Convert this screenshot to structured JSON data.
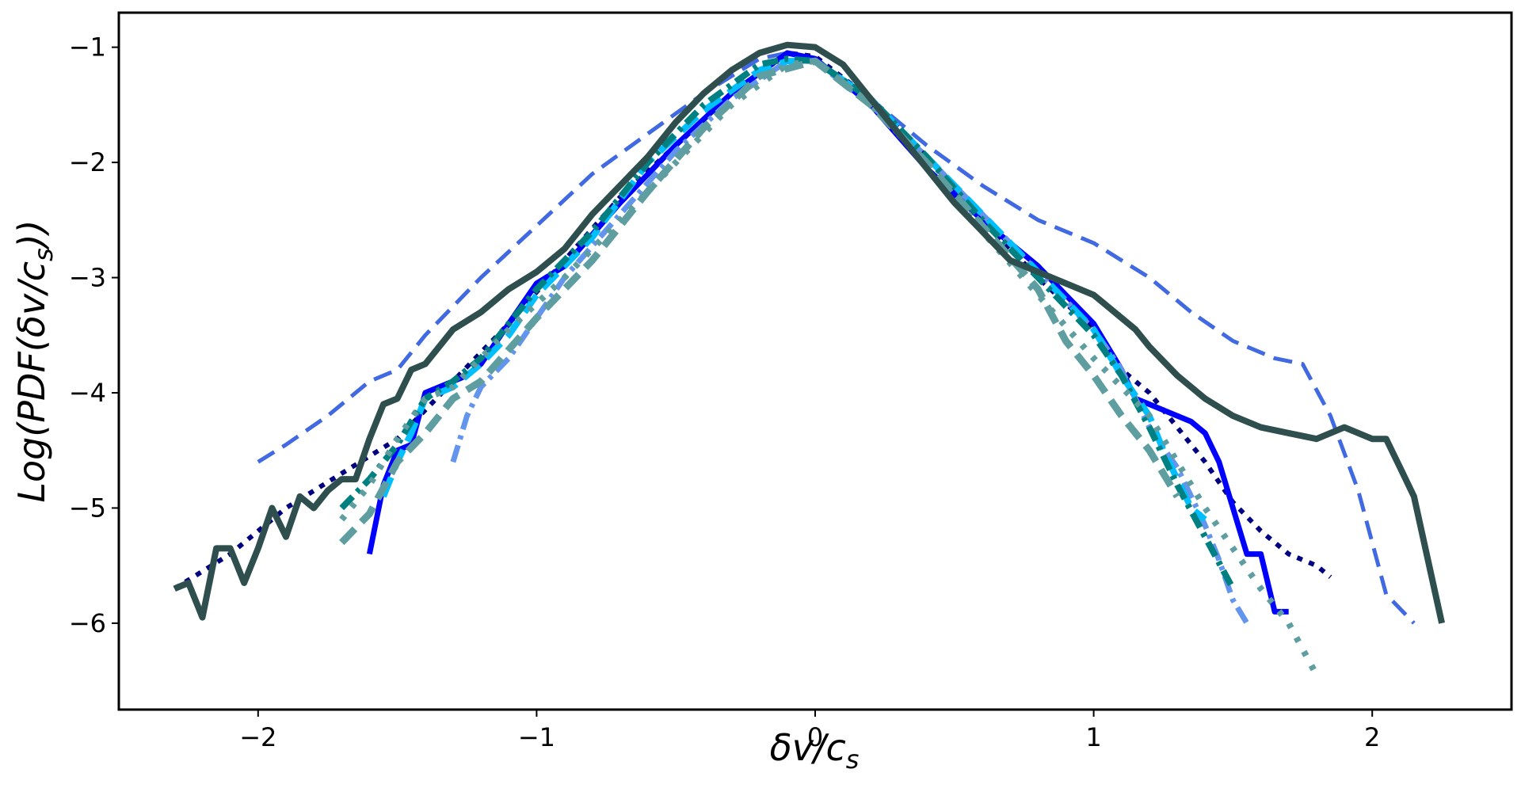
{
  "chart_data": {
    "type": "line",
    "title": "",
    "xlabel_parts": [
      "δv/c",
      "s"
    ],
    "ylabel_parts": [
      "Log(PDF(δv/c",
      "s",
      "))"
    ],
    "xlim": [
      -2.5,
      2.5
    ],
    "ylim": [
      -6.75,
      -0.7
    ],
    "xticks": [
      -2,
      -1,
      0,
      1,
      2
    ],
    "yticks": [
      -1,
      -2,
      -3,
      -4,
      -5,
      -6
    ],
    "grid": false,
    "legend": "none",
    "series": [
      {
        "name": "dashed royal blue",
        "color": "#4169e1",
        "dash": "24,12",
        "width": 5,
        "x": [
          -2.0,
          -1.9,
          -1.75,
          -1.6,
          -1.5,
          -1.4,
          -1.3,
          -1.2,
          -1.0,
          -0.8,
          -0.6,
          -0.4,
          -0.2,
          -0.1,
          0.0,
          0.2,
          0.4,
          0.6,
          0.8,
          1.0,
          1.2,
          1.35,
          1.5,
          1.65,
          1.75,
          1.85,
          1.95,
          2.05,
          2.15
        ],
        "y": [
          -4.6,
          -4.45,
          -4.2,
          -3.9,
          -3.8,
          -3.5,
          -3.25,
          -3.0,
          -2.55,
          -2.1,
          -1.75,
          -1.4,
          -1.1,
          -1.05,
          -1.1,
          -1.45,
          -1.85,
          -2.2,
          -2.5,
          -2.7,
          -3.0,
          -3.3,
          -3.55,
          -3.7,
          -3.75,
          -4.2,
          -4.85,
          -5.75,
          -6.0
        ]
      },
      {
        "name": "dotted navy",
        "color": "#000080",
        "dash": "7,9",
        "width": 6,
        "x": [
          -2.3,
          -2.1,
          -1.9,
          -1.7,
          -1.5,
          -1.3,
          -1.1,
          -0.9,
          -0.7,
          -0.5,
          -0.3,
          -0.1,
          0.0,
          0.2,
          0.4,
          0.6,
          0.8,
          1.0,
          1.1,
          1.2,
          1.3,
          1.4,
          1.5,
          1.6,
          1.7,
          1.8,
          1.85
        ],
        "y": [
          -5.7,
          -5.4,
          -5.0,
          -4.7,
          -4.4,
          -3.9,
          -3.4,
          -2.85,
          -2.3,
          -1.85,
          -1.4,
          -1.05,
          -1.08,
          -1.45,
          -1.95,
          -2.5,
          -3.0,
          -3.45,
          -3.8,
          -4.0,
          -4.3,
          -4.6,
          -4.95,
          -5.2,
          -5.4,
          -5.5,
          -5.6
        ]
      },
      {
        "name": "solid blue",
        "color": "#0000ff",
        "dash": "",
        "width": 7,
        "x": [
          -1.6,
          -1.55,
          -1.5,
          -1.45,
          -1.4,
          -1.35,
          -1.3,
          -1.25,
          -1.2,
          -1.1,
          -1.0,
          -0.9,
          -0.7,
          -0.5,
          -0.3,
          -0.1,
          0.0,
          0.2,
          0.4,
          0.6,
          0.8,
          0.9,
          1.0,
          1.1,
          1.15,
          1.2,
          1.25,
          1.3,
          1.35,
          1.4,
          1.45,
          1.5,
          1.55,
          1.6,
          1.65,
          1.7
        ],
        "y": [
          -5.4,
          -4.8,
          -4.5,
          -4.45,
          -4.0,
          -3.95,
          -3.9,
          -3.85,
          -3.75,
          -3.4,
          -3.05,
          -2.9,
          -2.35,
          -1.85,
          -1.4,
          -1.05,
          -1.1,
          -1.5,
          -2.05,
          -2.5,
          -2.9,
          -3.15,
          -3.4,
          -3.8,
          -4.05,
          -4.1,
          -4.15,
          -4.2,
          -4.25,
          -4.35,
          -4.6,
          -5.0,
          -5.4,
          -5.4,
          -5.9,
          -5.9
        ]
      },
      {
        "name": "dash-dot cornflower",
        "color": "#6495ed",
        "dash": "22,8,5,8",
        "width": 7,
        "x": [
          -1.3,
          -1.25,
          -1.2,
          -1.1,
          -0.9,
          -0.7,
          -0.5,
          -0.3,
          -0.1,
          0.0,
          0.2,
          0.4,
          0.6,
          0.8,
          1.0,
          1.1,
          1.2,
          1.3,
          1.35,
          1.4,
          1.45,
          1.5,
          1.55
        ],
        "y": [
          -4.6,
          -4.2,
          -3.95,
          -3.7,
          -3.0,
          -2.45,
          -1.9,
          -1.45,
          -1.12,
          -1.12,
          -1.5,
          -1.95,
          -2.45,
          -2.95,
          -3.45,
          -3.8,
          -4.3,
          -4.65,
          -4.9,
          -5.15,
          -5.45,
          -5.8,
          -6.0
        ]
      },
      {
        "name": "dashed deep sky blue",
        "color": "#00bfff",
        "dash": "26,12",
        "width": 8,
        "x": [
          -1.55,
          -1.5,
          -1.45,
          -1.4,
          -1.3,
          -1.2,
          -1.1,
          -1.0,
          -0.8,
          -0.6,
          -0.4,
          -0.2,
          -0.1,
          0.0,
          0.2,
          0.4,
          0.6,
          0.8,
          1.0,
          1.1,
          1.2,
          1.25,
          1.3,
          1.35,
          1.4
        ],
        "y": [
          -4.9,
          -4.6,
          -4.35,
          -4.05,
          -3.95,
          -3.75,
          -3.5,
          -3.15,
          -2.65,
          -2.0,
          -1.55,
          -1.2,
          -1.12,
          -1.12,
          -1.45,
          -1.95,
          -2.45,
          -2.95,
          -3.45,
          -3.85,
          -4.2,
          -4.5,
          -4.75,
          -5.0,
          -5.1
        ]
      },
      {
        "name": "dash-dot teal",
        "color": "#008080",
        "dash": "20,8,5,8",
        "width": 8,
        "x": [
          -1.7,
          -1.6,
          -1.5,
          -1.4,
          -1.3,
          -1.2,
          -1.0,
          -0.8,
          -0.6,
          -0.4,
          -0.2,
          -0.1,
          0.0,
          0.2,
          0.4,
          0.6,
          0.8,
          1.0,
          1.1,
          1.2,
          1.3,
          1.4,
          1.5
        ],
        "y": [
          -5.0,
          -4.75,
          -4.45,
          -4.05,
          -3.9,
          -3.7,
          -3.1,
          -2.6,
          -2.0,
          -1.5,
          -1.15,
          -1.1,
          -1.12,
          -1.45,
          -1.95,
          -2.5,
          -3.0,
          -3.5,
          -3.85,
          -4.3,
          -4.8,
          -5.25,
          -5.7
        ]
      },
      {
        "name": "dotted cadet blue",
        "color": "#5f9ea0",
        "dash": "6,14",
        "width": 8,
        "x": [
          -1.7,
          -1.6,
          -1.5,
          -1.4,
          -1.3,
          -1.1,
          -0.9,
          -0.7,
          -0.5,
          -0.3,
          -0.1,
          0.0,
          0.2,
          0.4,
          0.6,
          0.8,
          1.0,
          1.2,
          1.4,
          1.6,
          1.7,
          1.8
        ],
        "y": [
          -5.1,
          -4.8,
          -4.4,
          -4.05,
          -3.95,
          -3.45,
          -3.0,
          -2.5,
          -2.0,
          -1.5,
          -1.15,
          -1.12,
          -1.5,
          -2.0,
          -2.6,
          -3.15,
          -3.7,
          -4.2,
          -5.0,
          -5.7,
          -6.0,
          -6.45
        ]
      },
      {
        "name": "dashed cadet blue",
        "color": "#5f9ea0",
        "dash": "24,12",
        "width": 9,
        "x": [
          -1.7,
          -1.6,
          -1.5,
          -1.4,
          -1.3,
          -1.2,
          -1.0,
          -0.8,
          -0.6,
          -0.4,
          -0.2,
          0.0,
          0.2,
          0.4,
          0.6,
          0.8,
          0.9,
          1.0,
          1.1,
          1.2,
          1.3
        ],
        "y": [
          -5.3,
          -5.05,
          -4.6,
          -4.35,
          -4.05,
          -3.9,
          -3.35,
          -2.85,
          -2.25,
          -1.7,
          -1.25,
          -1.12,
          -1.5,
          -2.0,
          -2.55,
          -3.1,
          -3.55,
          -3.85,
          -4.2,
          -4.5,
          -4.9
        ]
      },
      {
        "name": "solid dark slate gray",
        "color": "#2f4f4f",
        "dash": "",
        "width": 8,
        "x": [
          -2.3,
          -2.25,
          -2.2,
          -2.15,
          -2.1,
          -2.05,
          -2.0,
          -1.95,
          -1.9,
          -1.85,
          -1.8,
          -1.75,
          -1.7,
          -1.65,
          -1.6,
          -1.55,
          -1.5,
          -1.45,
          -1.4,
          -1.3,
          -1.2,
          -1.1,
          -1.0,
          -0.9,
          -0.8,
          -0.7,
          -0.6,
          -0.5,
          -0.4,
          -0.3,
          -0.2,
          -0.1,
          0.0,
          0.1,
          0.2,
          0.3,
          0.4,
          0.5,
          0.6,
          0.7,
          0.8,
          0.9,
          1.0,
          1.05,
          1.1,
          1.15,
          1.2,
          1.3,
          1.4,
          1.5,
          1.6,
          1.7,
          1.8,
          1.9,
          2.0,
          2.05,
          2.1,
          2.15,
          2.2,
          2.25
        ],
        "y": [
          -5.7,
          -5.65,
          -5.95,
          -5.35,
          -5.35,
          -5.65,
          -5.35,
          -5.0,
          -5.25,
          -4.9,
          -5.0,
          -4.85,
          -4.75,
          -4.75,
          -4.4,
          -4.1,
          -4.05,
          -3.8,
          -3.75,
          -3.45,
          -3.3,
          -3.1,
          -2.95,
          -2.75,
          -2.45,
          -2.2,
          -1.95,
          -1.65,
          -1.4,
          -1.2,
          -1.05,
          -0.98,
          -1.0,
          -1.15,
          -1.45,
          -1.75,
          -2.05,
          -2.35,
          -2.6,
          -2.85,
          -2.95,
          -3.05,
          -3.15,
          -3.25,
          -3.35,
          -3.45,
          -3.6,
          -3.85,
          -4.05,
          -4.2,
          -4.3,
          -4.35,
          -4.4,
          -4.3,
          -4.4,
          -4.4,
          -4.65,
          -4.9,
          -5.45,
          -6.0
        ]
      }
    ]
  }
}
